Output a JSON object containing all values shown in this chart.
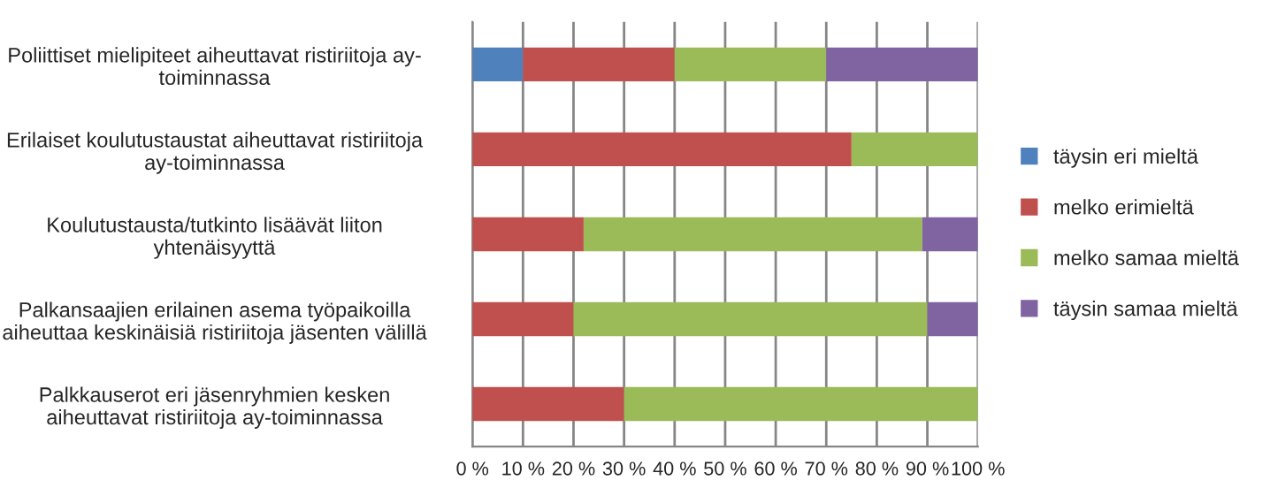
{
  "chart_data": {
    "type": "bar",
    "orientation": "horizontal",
    "stacked": true,
    "categories": [
      "Poliittiset mielipiteet aiheuttavat ristiriitoja ay-\ntoiminnassa",
      "Erilaiset koulutustaustat aiheuttavat ristiriitoja\nay-toiminnassa",
      "Koulutustausta/tutkinto lisäävät liiton\nyhtenäisyyttä",
      "Palkansaajien erilainen asema työpaikoilla\naiheuttaa keskinäisiä ristiriitoja jäsenten välillä",
      "Palkkauserot eri jäsenryhmien kesken\naiheuttavat ristiriitoja ay-toiminnassa"
    ],
    "series": [
      {
        "name": "täysin eri mieltä",
        "color": "#4f81bd",
        "values": [
          10,
          0,
          0,
          0,
          0
        ]
      },
      {
        "name": "melko erimieltä",
        "color": "#c0504d",
        "values": [
          30,
          75,
          22,
          20,
          30
        ]
      },
      {
        "name": "melko samaa mieltä",
        "color": "#9bbb59",
        "values": [
          30,
          25,
          67,
          70,
          70
        ]
      },
      {
        "name": "täysin samaa mieltä",
        "color": "#8064a2",
        "values": [
          30,
          0,
          11,
          10,
          0
        ]
      }
    ],
    "xlim": [
      0,
      100
    ],
    "xticks": [
      {
        "value": 0,
        "label": "0 %"
      },
      {
        "value": 10,
        "label": "10 %"
      },
      {
        "value": 20,
        "label": "20 %"
      },
      {
        "value": 30,
        "label": "30 %"
      },
      {
        "value": 40,
        "label": "40 %"
      },
      {
        "value": 50,
        "label": "50 %"
      },
      {
        "value": 60,
        "label": "60 %"
      },
      {
        "value": 70,
        "label": "70 %"
      },
      {
        "value": 80,
        "label": "80 %"
      },
      {
        "value": 90,
        "label": "90 %"
      },
      {
        "value": 100,
        "label": "100 %"
      }
    ],
    "grid": "x",
    "legend": "right"
  }
}
